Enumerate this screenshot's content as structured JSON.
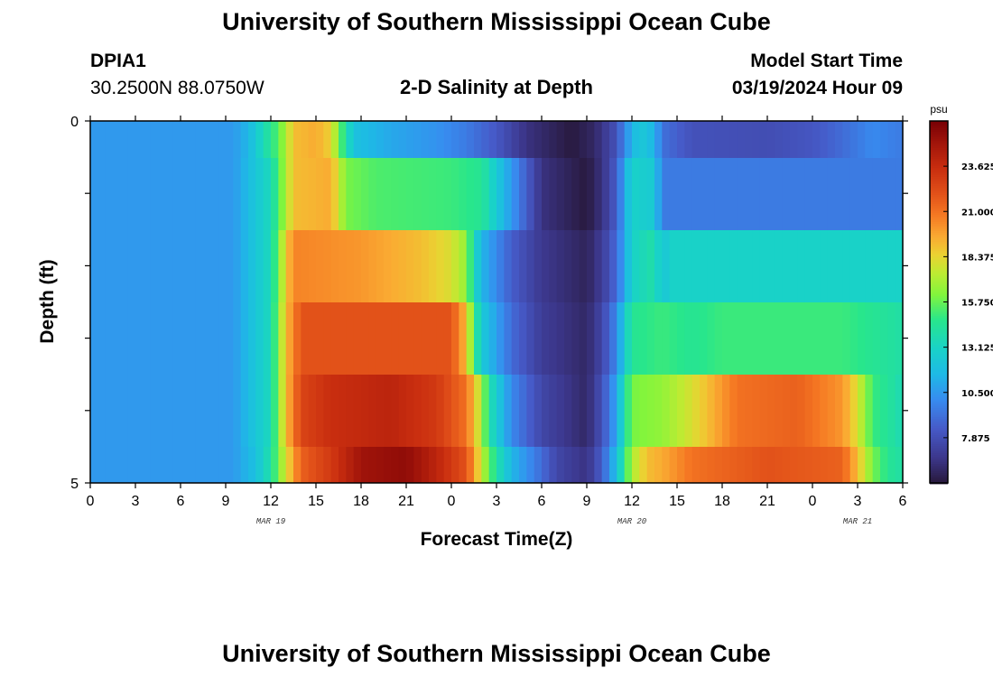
{
  "page": {
    "title": "University of Southern Mississippi Ocean Cube",
    "station_id": "DPIA1",
    "station_coords": "30.2500N  88.0750W",
    "subtitle": "2-D Salinity at Depth",
    "model_label": "Model Start Time",
    "model_time": "03/19/2024 Hour 09",
    "footer_title": "University of Southern Mississippi Ocean Cube"
  },
  "chart_data": {
    "type": "heatmap",
    "title": "2-D Salinity at Depth",
    "xlabel": "Forecast Time(Z)",
    "ylabel": "Depth (ft)",
    "x_tick_labels": [
      "0",
      "3",
      "6",
      "9",
      "12",
      "15",
      "18",
      "21",
      "0",
      "3",
      "6",
      "9",
      "12",
      "15",
      "18",
      "21",
      "0",
      "3",
      "6"
    ],
    "date_labels": [
      {
        "label": "MAR 19",
        "hour": 12
      },
      {
        "label": "MAR 20",
        "hour": 36
      },
      {
        "label": "MAR 21",
        "hour": 51
      }
    ],
    "x_range_hours": [
      0,
      54
    ],
    "y_tick_labels": [
      "0",
      "5"
    ],
    "ylim": [
      0,
      5
    ],
    "depth_bands": [
      "0-1 ft",
      "1-2 ft",
      "2-3 ft",
      "3-4 ft",
      "4-5 ft",
      "5 ft"
    ],
    "colorbar": {
      "unit": "psu",
      "ticks": [
        "23.625",
        "21.000",
        "18.375",
        "15.750",
        "13.125",
        "10.500",
        "7.875"
      ],
      "tick_values": [
        23.625,
        21.0,
        18.375,
        15.75,
        13.125,
        10.5,
        7.875
      ],
      "vmin": 5.25,
      "vmax": 26.25
    },
    "salinity_keyframes": [
      {
        "depth_band": 0,
        "points": [
          [
            0,
            10.5
          ],
          [
            9.5,
            10.5
          ],
          [
            10.5,
            11.5
          ],
          [
            11,
            12.5
          ],
          [
            11.5,
            13.5
          ],
          [
            12,
            14.5
          ],
          [
            12.5,
            15.5
          ],
          [
            13,
            17
          ],
          [
            13.5,
            19
          ],
          [
            15,
            19.5
          ],
          [
            16,
            18.5
          ],
          [
            16.5,
            16
          ],
          [
            17.5,
            12
          ],
          [
            20,
            11
          ],
          [
            23,
            10.3
          ],
          [
            25,
            9.5
          ],
          [
            27,
            8.3
          ],
          [
            29,
            6.5
          ],
          [
            32,
            5.3
          ],
          [
            33.5,
            6
          ],
          [
            35,
            8
          ],
          [
            35.5,
            10
          ],
          [
            36.5,
            12.5
          ],
          [
            37.5,
            11.5
          ],
          [
            38,
            9.2
          ],
          [
            40,
            8
          ],
          [
            45,
            7.8
          ],
          [
            48,
            8.2
          ],
          [
            50,
            9
          ],
          [
            52,
            10
          ],
          [
            54,
            9.5
          ]
        ]
      },
      {
        "depth_band": 1,
        "points": [
          [
            0,
            10.5
          ],
          [
            9.5,
            10.5
          ],
          [
            12,
            13.5
          ],
          [
            13,
            17
          ],
          [
            13.5,
            19
          ],
          [
            16,
            19.5
          ],
          [
            17,
            16
          ],
          [
            19,
            15.3
          ],
          [
            24,
            15
          ],
          [
            26,
            14.5
          ],
          [
            27,
            12.5
          ],
          [
            29,
            8.5
          ],
          [
            30,
            6.5
          ],
          [
            33,
            5.3
          ],
          [
            34,
            6.5
          ],
          [
            35,
            8.5
          ],
          [
            35.5,
            11
          ],
          [
            36,
            13
          ],
          [
            37.5,
            12.5
          ],
          [
            38,
            9.5
          ],
          [
            54,
            9.5
          ]
        ]
      },
      {
        "depth_band": 2,
        "points": [
          [
            0,
            10.5
          ],
          [
            9.5,
            10.5
          ],
          [
            12,
            13.5
          ],
          [
            13,
            18.5
          ],
          [
            13.5,
            20.5
          ],
          [
            18,
            20
          ],
          [
            22,
            19
          ],
          [
            24,
            18
          ],
          [
            25,
            16.5
          ],
          [
            25.5,
            13.5
          ],
          [
            26,
            11.5
          ],
          [
            28,
            8.5
          ],
          [
            30,
            6.8
          ],
          [
            33,
            5.8
          ],
          [
            34,
            7
          ],
          [
            35,
            9
          ],
          [
            35.5,
            11
          ],
          [
            36,
            13
          ],
          [
            37.5,
            14
          ],
          [
            38,
            12
          ],
          [
            38.5,
            13
          ],
          [
            54,
            13
          ]
        ]
      },
      {
        "depth_band": 3,
        "points": [
          [
            0,
            10.5
          ],
          [
            9.5,
            10.5
          ],
          [
            12,
            13.5
          ],
          [
            13,
            19
          ],
          [
            14,
            22
          ],
          [
            24,
            22
          ],
          [
            25,
            19
          ],
          [
            25.5,
            15
          ],
          [
            26,
            12.5
          ],
          [
            28,
            9
          ],
          [
            30,
            7
          ],
          [
            33,
            6
          ],
          [
            34,
            7.5
          ],
          [
            35,
            10
          ],
          [
            35.5,
            12.5
          ],
          [
            36,
            14.5
          ],
          [
            38,
            15
          ],
          [
            40,
            14.5
          ],
          [
            42,
            15
          ],
          [
            45,
            15
          ],
          [
            50,
            15
          ],
          [
            54,
            14
          ]
        ]
      },
      {
        "depth_band": 4,
        "points": [
          [
            0,
            10.5
          ],
          [
            9.5,
            10.5
          ],
          [
            12,
            13.5
          ],
          [
            13,
            19
          ],
          [
            14,
            22.5
          ],
          [
            16,
            23.5
          ],
          [
            20,
            24
          ],
          [
            23,
            23
          ],
          [
            25,
            21
          ],
          [
            26,
            17
          ],
          [
            26.5,
            14
          ],
          [
            28,
            10
          ],
          [
            30,
            7.5
          ],
          [
            33,
            6
          ],
          [
            34,
            8
          ],
          [
            35,
            11
          ],
          [
            35.5,
            14
          ],
          [
            36,
            16
          ],
          [
            38,
            16.5
          ],
          [
            40,
            18
          ],
          [
            43,
            21
          ],
          [
            47,
            21.5
          ],
          [
            50,
            20
          ],
          [
            51,
            18
          ],
          [
            52,
            15
          ],
          [
            53.5,
            14
          ],
          [
            54,
            13.5
          ]
        ]
      },
      {
        "depth_band": 5,
        "points": [
          [
            0,
            10.5
          ],
          [
            9.5,
            10.5
          ],
          [
            11,
            12
          ],
          [
            12,
            14
          ],
          [
            13,
            18
          ],
          [
            14,
            21.5
          ],
          [
            16,
            23
          ],
          [
            18,
            25
          ],
          [
            21,
            25.5
          ],
          [
            23,
            24
          ],
          [
            25,
            22
          ],
          [
            25.5,
            20
          ],
          [
            26,
            17.5
          ],
          [
            27,
            14
          ],
          [
            28,
            11.5
          ],
          [
            30,
            9
          ],
          [
            31,
            7.5
          ],
          [
            33,
            6.5
          ],
          [
            34,
            8.5
          ],
          [
            35,
            12
          ],
          [
            35.5,
            14.5
          ],
          [
            36,
            17
          ],
          [
            37,
            19
          ],
          [
            38,
            19.5
          ],
          [
            40,
            21
          ],
          [
            45,
            22
          ],
          [
            50,
            21.5
          ],
          [
            51,
            19
          ],
          [
            52,
            16
          ],
          [
            53,
            14.5
          ],
          [
            54,
            14
          ]
        ]
      }
    ]
  }
}
